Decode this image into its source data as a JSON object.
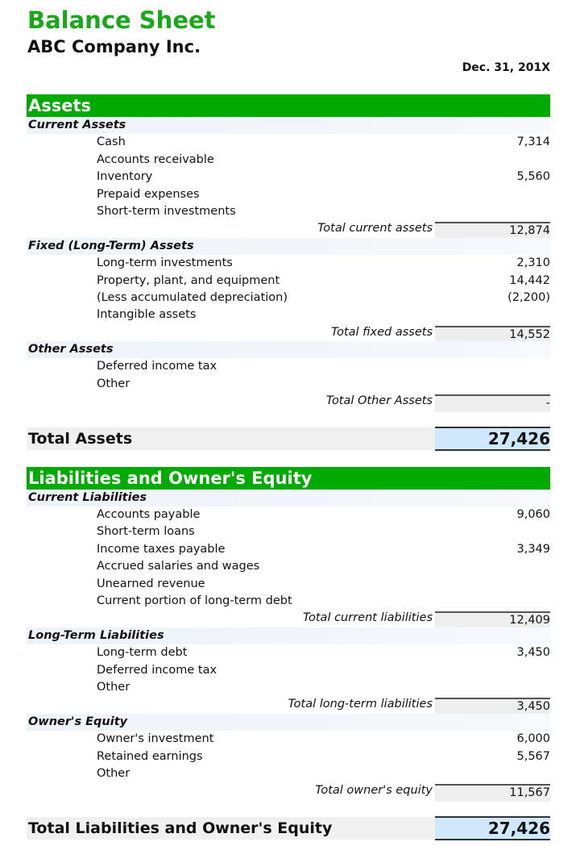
{
  "header": {
    "title": "Balance Sheet",
    "company": "ABC Company Inc.",
    "date": "Dec. 31, 201X"
  },
  "colors": {
    "accent": "#00aa00",
    "title": "#1aa81a",
    "grand_total_fill": "#cfe8fb"
  },
  "sections": [
    {
      "heading": "Assets",
      "groups": [
        {
          "name": "Current Assets",
          "items": [
            {
              "label": "Cash",
              "value": "7,314"
            },
            {
              "label": "Accounts receivable",
              "value": ""
            },
            {
              "label": "Inventory",
              "value": "5,560"
            },
            {
              "label": "Prepaid expenses",
              "value": ""
            },
            {
              "label": "Short-term investments",
              "value": ""
            }
          ],
          "total_label": "Total current assets",
          "total_value": "12,874"
        },
        {
          "name": "Fixed (Long-Term) Assets",
          "items": [
            {
              "label": "Long-term investments",
              "value": "2,310"
            },
            {
              "label": "Property, plant, and equipment",
              "value": "14,442"
            },
            {
              "label": "(Less accumulated depreciation)",
              "value": "(2,200)"
            },
            {
              "label": "Intangible assets",
              "value": ""
            }
          ],
          "total_label": "Total fixed assets",
          "total_value": "14,552"
        },
        {
          "name": "Other Assets",
          "items": [
            {
              "label": "Deferred income tax",
              "value": ""
            },
            {
              "label": "Other",
              "value": ""
            }
          ],
          "total_label": "Total Other Assets",
          "total_value": "-"
        }
      ],
      "grand_label": "Total Assets",
      "grand_value": "27,426"
    },
    {
      "heading": "Liabilities and Owner's Equity",
      "groups": [
        {
          "name": "Current Liabilities",
          "items": [
            {
              "label": "Accounts payable",
              "value": "9,060"
            },
            {
              "label": "Short-term loans",
              "value": ""
            },
            {
              "label": "Income taxes payable",
              "value": "3,349"
            },
            {
              "label": "Accrued salaries and wages",
              "value": ""
            },
            {
              "label": "Unearned revenue",
              "value": ""
            },
            {
              "label": "Current portion of long-term debt",
              "value": ""
            }
          ],
          "total_label": "Total current liabilities",
          "total_value": "12,409"
        },
        {
          "name": "Long-Term Liabilities",
          "items": [
            {
              "label": "Long-term debt",
              "value": "3,450"
            },
            {
              "label": "Deferred income tax",
              "value": ""
            },
            {
              "label": "Other",
              "value": ""
            }
          ],
          "total_label": "Total long-term liabilities",
          "total_value": "3,450"
        },
        {
          "name": "Owner's Equity",
          "items": [
            {
              "label": "Owner's investment",
              "value": "6,000"
            },
            {
              "label": "Retained earnings",
              "value": "5,567"
            },
            {
              "label": "Other",
              "value": ""
            }
          ],
          "total_label": "Total owner's equity",
          "total_value": "11,567"
        }
      ],
      "grand_label": "Total Liabilities and Owner's Equity",
      "grand_value": "27,426"
    }
  ]
}
